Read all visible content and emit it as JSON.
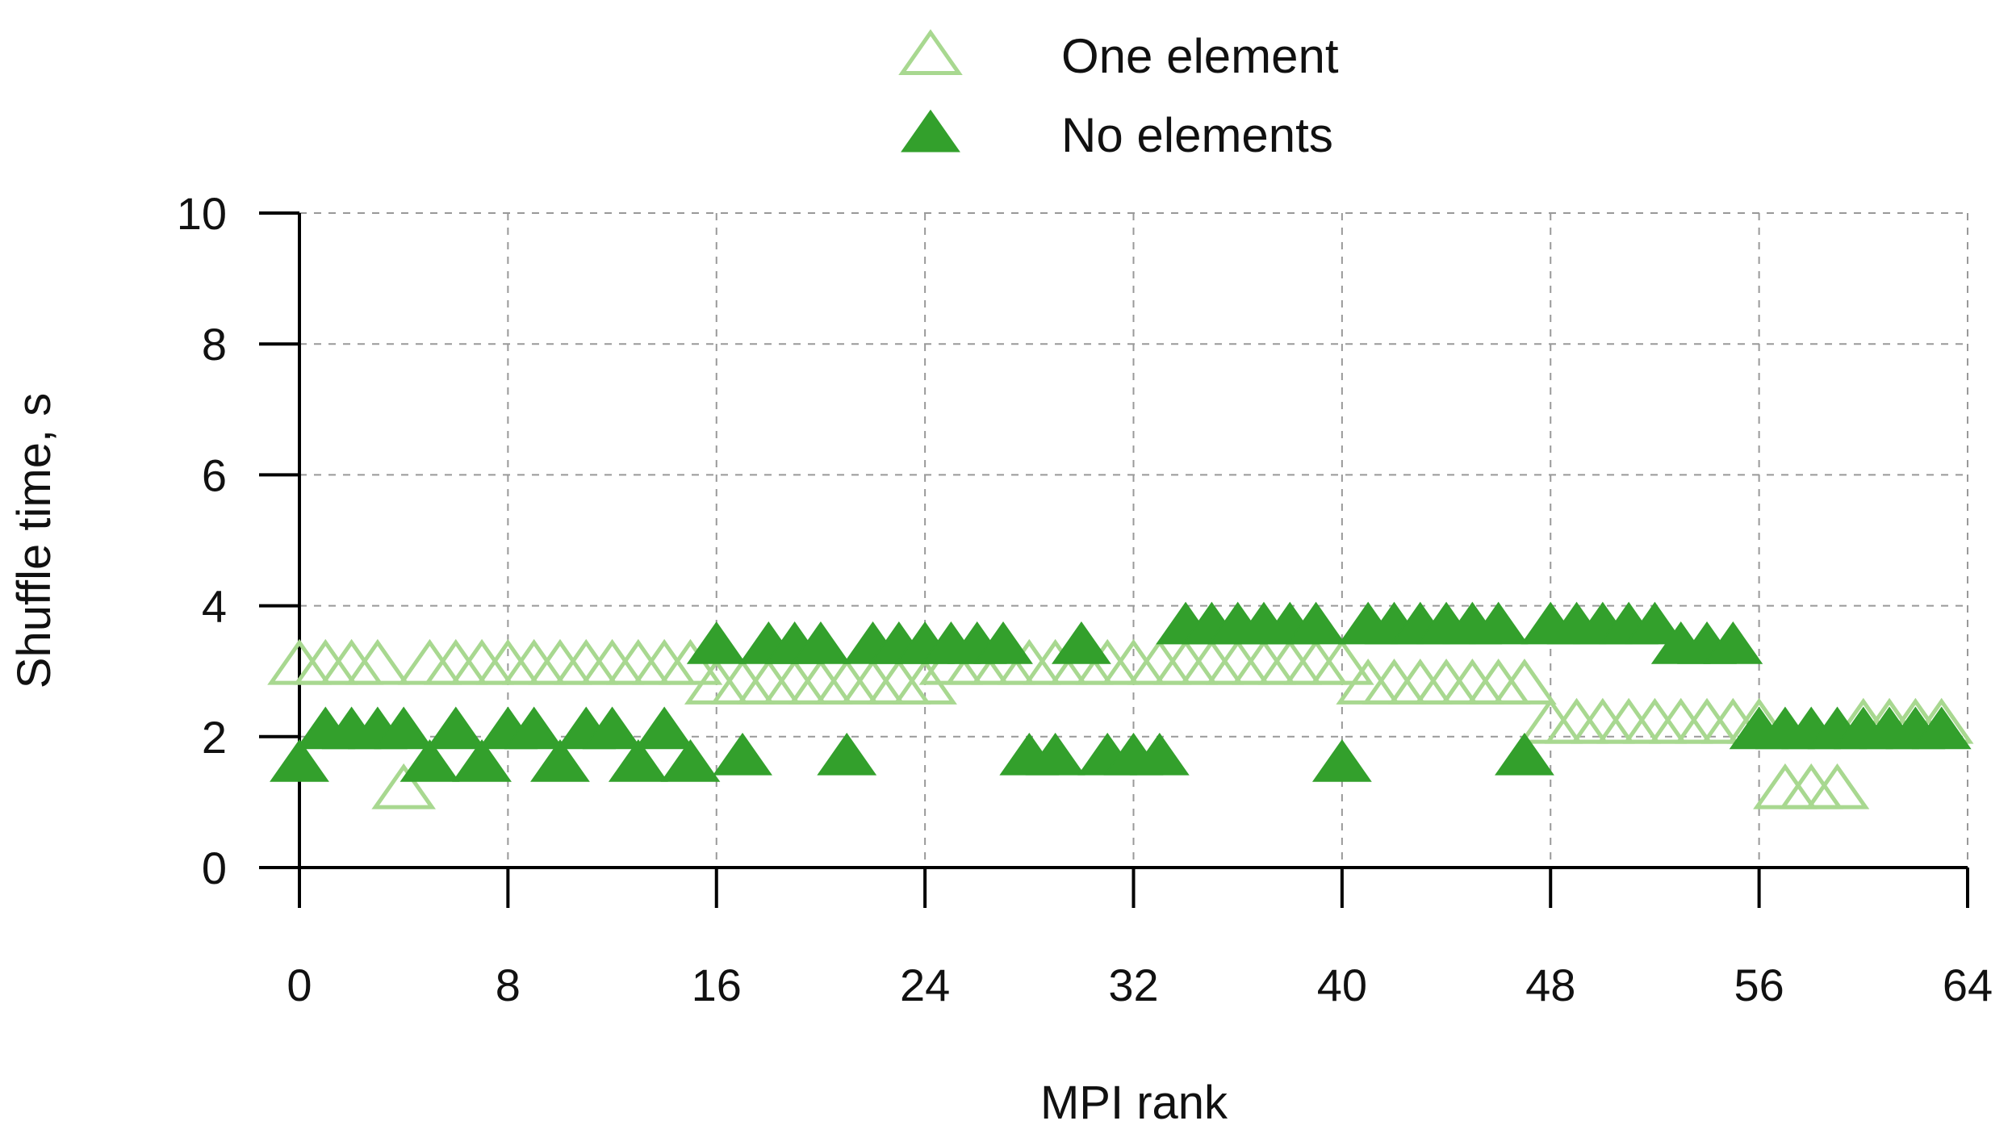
{
  "chart_data": {
    "type": "scatter",
    "xlabel": "MPI rank",
    "ylabel": "Shuffle time, s",
    "xlim": [
      0,
      64
    ],
    "ylim": [
      0,
      10
    ],
    "xticks": [
      0,
      8,
      16,
      24,
      32,
      40,
      48,
      56,
      64
    ],
    "yticks": [
      0,
      2,
      4,
      6,
      8,
      10
    ],
    "grid": true,
    "legend_position": "top-center",
    "series": [
      {
        "name": "One element",
        "marker": "open-triangle",
        "color": "#a8d890",
        "x": [
          0,
          1,
          2,
          3,
          4,
          5,
          6,
          7,
          8,
          9,
          10,
          11,
          12,
          13,
          14,
          15,
          16,
          17,
          18,
          19,
          20,
          21,
          22,
          23,
          24,
          25,
          26,
          27,
          28,
          29,
          30,
          31,
          32,
          33,
          34,
          35,
          36,
          37,
          38,
          39,
          40,
          41,
          42,
          43,
          44,
          45,
          46,
          47,
          48,
          49,
          50,
          51,
          52,
          53,
          54,
          55,
          56,
          57,
          58,
          59,
          60,
          61,
          62,
          63
        ],
        "values": [
          3.1,
          3.1,
          3.1,
          3.1,
          1.2,
          3.1,
          3.1,
          3.1,
          3.1,
          3.1,
          3.1,
          3.1,
          3.1,
          3.1,
          3.1,
          3.1,
          2.8,
          2.8,
          2.8,
          2.8,
          2.8,
          2.8,
          2.8,
          2.8,
          2.8,
          3.1,
          3.1,
          3.1,
          3.1,
          3.1,
          3.1,
          3.1,
          3.1,
          3.1,
          3.1,
          3.1,
          3.1,
          3.1,
          3.1,
          3.1,
          3.1,
          2.8,
          2.8,
          2.8,
          2.8,
          2.8,
          2.8,
          2.8,
          2.2,
          2.2,
          2.2,
          2.2,
          2.2,
          2.2,
          2.2,
          2.2,
          2.2,
          1.2,
          1.2,
          1.2,
          2.2,
          2.2,
          2.2,
          2.2
        ]
      },
      {
        "name": "No elements",
        "marker": "filled-triangle",
        "color": "#33a02c",
        "x": [
          0,
          1,
          2,
          3,
          4,
          5,
          6,
          7,
          8,
          9,
          10,
          11,
          12,
          13,
          14,
          15,
          16,
          17,
          18,
          19,
          20,
          21,
          22,
          23,
          24,
          25,
          26,
          27,
          28,
          29,
          30,
          31,
          32,
          33,
          34,
          35,
          36,
          37,
          38,
          39,
          40,
          41,
          42,
          43,
          44,
          45,
          46,
          47,
          48,
          49,
          50,
          51,
          52,
          53,
          54,
          55,
          56,
          57,
          58,
          59,
          60,
          61,
          62,
          63
        ],
        "values": [
          1.6,
          2.1,
          2.1,
          2.1,
          2.1,
          1.6,
          2.1,
          1.6,
          2.1,
          2.1,
          1.6,
          2.1,
          2.1,
          1.6,
          2.1,
          1.6,
          3.4,
          1.7,
          3.4,
          3.4,
          3.4,
          1.7,
          3.4,
          3.4,
          3.4,
          3.4,
          3.4,
          3.4,
          1.7,
          1.7,
          3.4,
          1.7,
          1.7,
          1.7,
          3.7,
          3.7,
          3.7,
          3.7,
          3.7,
          3.7,
          1.6,
          3.7,
          3.7,
          3.7,
          3.7,
          3.7,
          3.7,
          1.7,
          3.7,
          3.7,
          3.7,
          3.7,
          3.7,
          3.4,
          3.4,
          3.4,
          2.1,
          2.1,
          2.1,
          2.1,
          2.1,
          2.1,
          2.1,
          2.1
        ]
      }
    ]
  }
}
